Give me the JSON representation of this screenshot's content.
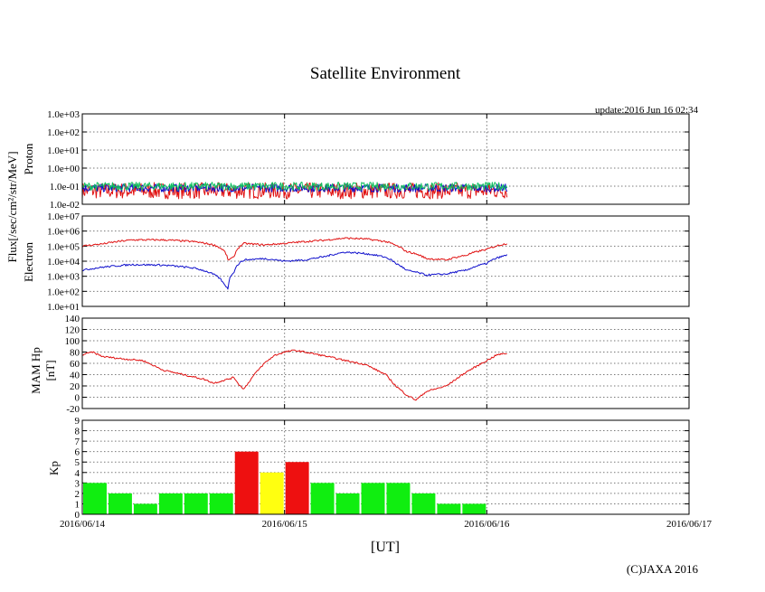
{
  "title": "Satellite Environment",
  "update_label": "update:2016 Jun 16 02:34",
  "xlabel": "[UT]",
  "copyright": "(C)JAXA 2016",
  "flux_label": "Flux[/sec/cm²/str/MeV]",
  "x_ticks": [
    "2016/06/14",
    "2016/06/15",
    "2016/06/16",
    "2016/06/17"
  ],
  "colors": {
    "red": "#e01010",
    "blue": "#1010cc",
    "green": "#10c060",
    "kp_green": "#10ee10",
    "kp_yellow": "#ffff10",
    "kp_red": "#ee1010"
  },
  "chart_data": [
    {
      "type": "line",
      "name": "proton",
      "ylabel": "Proton",
      "log_scale": true,
      "ylim": [
        0.01,
        1000
      ],
      "y_ticks": [
        "1.0e+03",
        "1.0e+02",
        "1.0e+01",
        "1.0e+00",
        "1.0e-01",
        "1.0e-02"
      ],
      "x_range_days": [
        0,
        3
      ],
      "data_end_day": 2.1,
      "series": [
        {
          "color": "red",
          "x": [
            0,
            0.5,
            1.0,
            1.5,
            2.1
          ],
          "y": [
            0.02,
            0.02,
            0.02,
            0.02,
            0.02
          ]
        },
        {
          "color": "blue",
          "x": [
            0,
            0.5,
            1.0,
            1.5,
            2.1
          ],
          "y": [
            0.08,
            0.08,
            0.08,
            0.08,
            0.08
          ]
        },
        {
          "color": "green",
          "x": [
            0,
            0.5,
            1.0,
            1.5,
            2.1
          ],
          "y": [
            0.1,
            0.1,
            0.1,
            0.1,
            0.1
          ]
        }
      ]
    },
    {
      "type": "line",
      "name": "electron",
      "ylabel": "Electron",
      "log_scale": true,
      "ylim": [
        10,
        10000000
      ],
      "y_ticks": [
        "1.0e+07",
        "1.0e+06",
        "1.0e+05",
        "1.0e+04",
        "1.0e+03",
        "1.0e+02",
        "1.0e+01"
      ],
      "x_range_days": [
        0,
        3
      ],
      "series": [
        {
          "color": "red",
          "x": [
            0,
            0.1,
            0.25,
            0.4,
            0.55,
            0.65,
            0.7,
            0.72,
            0.75,
            0.8,
            0.9,
            1.0,
            1.1,
            1.2,
            1.3,
            1.4,
            1.5,
            1.55,
            1.6,
            1.7,
            1.8,
            1.9,
            2.0,
            2.1
          ],
          "y": [
            100000,
            140000,
            260000,
            260000,
            200000,
            120000,
            50000,
            12000,
            18000,
            150000,
            120000,
            150000,
            200000,
            250000,
            340000,
            300000,
            200000,
            110000,
            45000,
            15000,
            12000,
            25000,
            60000,
            150000
          ]
        },
        {
          "color": "blue",
          "x": [
            0,
            0.1,
            0.25,
            0.4,
            0.55,
            0.65,
            0.7,
            0.72,
            0.75,
            0.8,
            0.9,
            1.0,
            1.1,
            1.2,
            1.3,
            1.4,
            1.5,
            1.55,
            1.6,
            1.7,
            1.8,
            1.9,
            2.0,
            2.1
          ],
          "y": [
            2500,
            4000,
            6000,
            5500,
            3500,
            1300,
            300,
            150,
            2000,
            12000,
            15000,
            10000,
            12000,
            20000,
            40000,
            32000,
            18000,
            7000,
            2500,
            1200,
            1400,
            2500,
            7000,
            25000
          ]
        }
      ]
    },
    {
      "type": "line",
      "name": "hp",
      "ylabel": "MAM Hp",
      "unit": "[nT]",
      "ylim": [
        -20,
        140
      ],
      "y_ticks": [
        "140",
        "120",
        "100",
        "80",
        "60",
        "40",
        "20",
        "0",
        "-20"
      ],
      "x_range_days": [
        0,
        3
      ],
      "series": [
        {
          "color": "red",
          "x": [
            0,
            0.05,
            0.1,
            0.2,
            0.3,
            0.4,
            0.5,
            0.6,
            0.65,
            0.7,
            0.75,
            0.78,
            0.8,
            0.85,
            0.9,
            0.95,
            1.0,
            1.05,
            1.1,
            1.2,
            1.3,
            1.4,
            1.5,
            1.55,
            1.6,
            1.65,
            1.7,
            1.8,
            1.9,
            2.0,
            2.05,
            2.1
          ],
          "y": [
            75,
            80,
            72,
            68,
            65,
            48,
            40,
            32,
            25,
            30,
            35,
            20,
            15,
            40,
            60,
            74,
            80,
            83,
            80,
            73,
            65,
            58,
            40,
            20,
            5,
            -5,
            10,
            20,
            45,
            65,
            75,
            78
          ]
        }
      ]
    },
    {
      "type": "bar",
      "name": "kp",
      "ylabel": "Kp",
      "ylim": [
        0,
        9
      ],
      "y_ticks": [
        "9",
        "8",
        "7",
        "6",
        "5",
        "4",
        "3",
        "2",
        "1",
        "0"
      ],
      "bar_width_days": 0.125,
      "values": [
        3,
        2,
        1,
        2,
        2,
        2,
        6,
        4,
        5,
        3,
        2,
        3,
        3,
        2,
        1,
        1
      ],
      "bar_colors": [
        "kp_green",
        "kp_green",
        "kp_green",
        "kp_green",
        "kp_green",
        "kp_green",
        "kp_red",
        "kp_yellow",
        "kp_red",
        "kp_green",
        "kp_green",
        "kp_green",
        "kp_green",
        "kp_green",
        "kp_green",
        "kp_green"
      ]
    }
  ]
}
